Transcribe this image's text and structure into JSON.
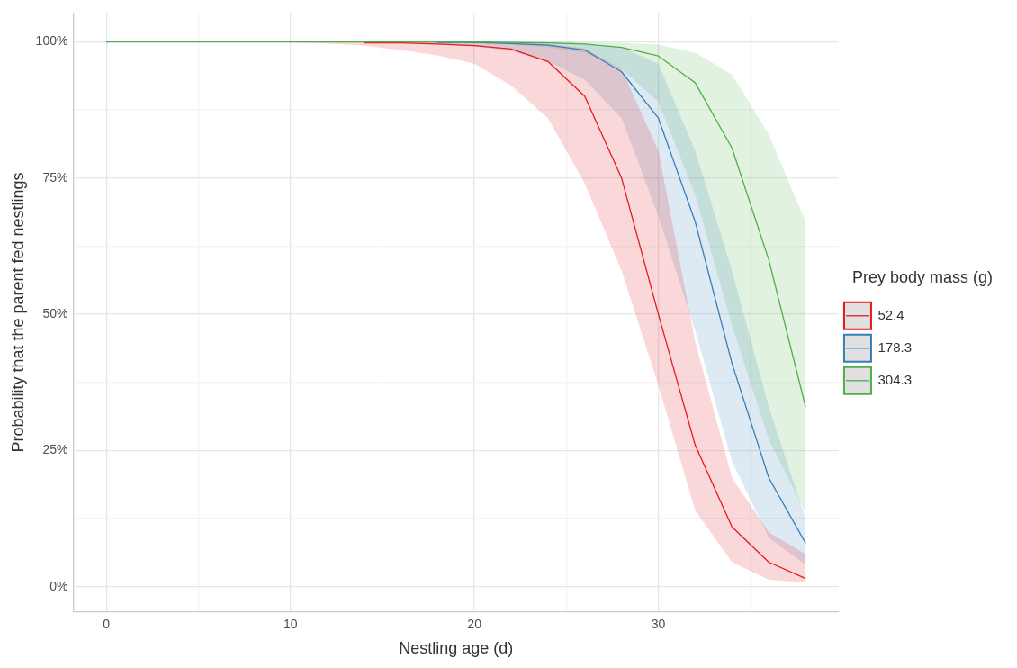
{
  "chart_data": {
    "type": "line",
    "xlabel": "Nestling age (d)",
    "ylabel": "Probability that the parent fed nestlings",
    "legend_title": "Prey body mass (g)",
    "legend": "right",
    "grid": true,
    "marker": "none",
    "line_style": "solid",
    "x": [
      0,
      2,
      4,
      6,
      8,
      10,
      12,
      14,
      16,
      18,
      20,
      22,
      24,
      26,
      28,
      30,
      32,
      34,
      36,
      38
    ],
    "xlim": [
      -1.8,
      39.8
    ],
    "xticks": [
      0,
      {
        "value": 5,
        "label": null
      },
      10,
      {
        "value": 15,
        "label": null
      },
      20,
      {
        "value": 25,
        "label": null
      },
      30,
      {
        "value": 35,
        "label": null
      }
    ],
    "ylim": [
      -4.6,
      105.3
    ],
    "yticks": [
      {
        "value": 0,
        "label": "0%"
      },
      {
        "value": 12.5,
        "label": null
      },
      {
        "value": 25,
        "label": "25%"
      },
      {
        "value": 37.5,
        "label": null
      },
      {
        "value": 50,
        "label": "50%"
      },
      {
        "value": 62.5,
        "label": null
      },
      {
        "value": 75,
        "label": "75%"
      },
      {
        "value": 87.5,
        "label": null
      },
      {
        "value": 100,
        "label": "100%"
      }
    ],
    "series": [
      {
        "name": "52.4",
        "color": "#e41a1c",
        "values": [
          null,
          null,
          null,
          null,
          null,
          null,
          null,
          99.8,
          99.8,
          99.6,
          99.3,
          98.7,
          96.4,
          90,
          75,
          50,
          26,
          11,
          4.5,
          1.5
        ],
        "lower": [
          100,
          100,
          100,
          100,
          100,
          99.9,
          99.7,
          99.3,
          98.5,
          97.5,
          96,
          92,
          86,
          74,
          58,
          37,
          14,
          4.5,
          1.3,
          0.8
        ],
        "upper": [
          100,
          100,
          100,
          100,
          100,
          100,
          100,
          100,
          100,
          100,
          100,
          99.9,
          99.6,
          98.8,
          95,
          80,
          45,
          20,
          10,
          6
        ]
      },
      {
        "name": "178.3",
        "color": "#377eb8",
        "values": [
          null,
          null,
          null,
          null,
          null,
          null,
          null,
          null,
          null,
          99.9,
          99.9,
          99.7,
          99.4,
          98.5,
          94.5,
          86,
          67,
          41,
          20,
          8
        ],
        "lower": [
          100,
          100,
          100,
          100,
          100,
          100,
          100,
          99.9,
          99.8,
          99.6,
          99.2,
          98.3,
          96.5,
          93,
          86,
          68,
          47,
          23,
          9,
          4
        ],
        "upper": [
          100,
          100,
          100,
          100,
          100,
          100,
          100,
          100,
          100,
          100,
          100,
          100,
          99.9,
          99.7,
          99,
          96,
          80,
          58,
          33,
          12.5
        ]
      },
      {
        "name": "304.3",
        "color": "#4daf4a",
        "values": [
          100,
          100,
          100,
          100,
          100,
          100,
          100,
          100,
          100,
          100,
          100,
          99.9,
          99.8,
          99.6,
          99,
          97.4,
          92.5,
          80.5,
          60,
          33
        ],
        "lower": [
          100,
          100,
          100,
          100,
          100,
          100,
          100,
          100,
          100,
          99.9,
          99.8,
          99.5,
          99,
          98,
          95,
          89,
          72,
          48,
          27,
          13.5
        ],
        "upper": [
          100,
          100,
          100,
          100,
          100,
          100,
          100,
          100,
          100,
          100,
          100,
          100,
          100,
          99.9,
          99.8,
          99.5,
          98,
          94,
          83,
          67
        ]
      }
    ]
  }
}
